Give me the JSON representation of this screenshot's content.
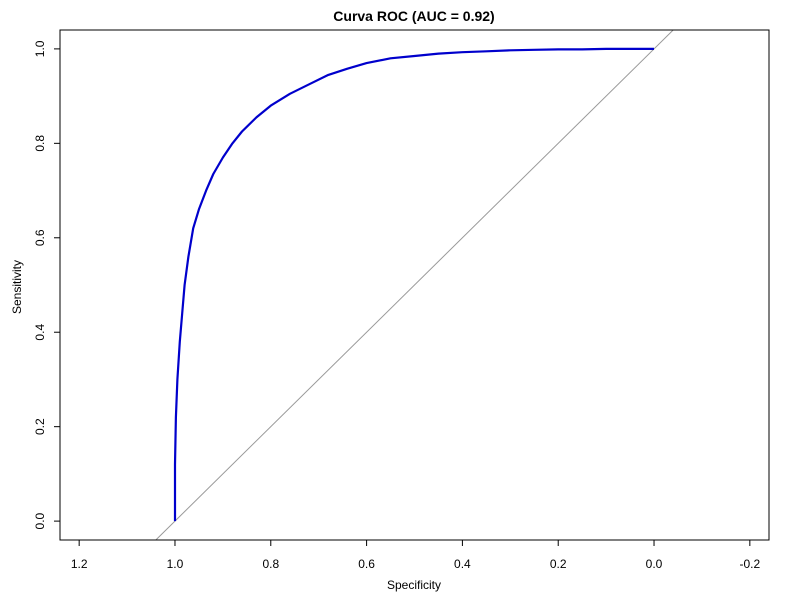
{
  "chart_data": {
    "type": "line",
    "title": "Curva ROC (AUC = 0.92)",
    "xlabel": "Specificity",
    "ylabel": "Sensitivity",
    "x_axis_reversed": true,
    "xlim": [
      1.24,
      -0.24
    ],
    "ylim": [
      -0.04,
      1.04
    ],
    "x_ticks": [
      1.2,
      1.0,
      0.8,
      0.6,
      0.4,
      0.2,
      0.0,
      -0.2
    ],
    "x_tick_labels": [
      "1.2",
      "1.0",
      "0.8",
      "0.6",
      "0.4",
      "0.2",
      "0.0",
      "-0.2"
    ],
    "y_ticks": [
      0.0,
      0.2,
      0.4,
      0.6,
      0.8,
      1.0
    ],
    "y_tick_labels": [
      "0.0",
      "0.2",
      "0.4",
      "0.6",
      "0.8",
      "1.0"
    ],
    "grid": false,
    "series": [
      {
        "color": "#0000cc",
        "x": [
          1.0,
          1.0,
          0.998,
          0.995,
          0.99,
          0.985,
          0.98,
          0.972,
          0.962,
          0.95,
          0.935,
          0.92,
          0.9,
          0.88,
          0.86,
          0.83,
          0.8,
          0.76,
          0.72,
          0.68,
          0.64,
          0.6,
          0.55,
          0.5,
          0.45,
          0.4,
          0.35,
          0.3,
          0.25,
          0.2,
          0.15,
          0.1,
          0.05,
          0.0
        ],
        "y": [
          0.0,
          0.12,
          0.22,
          0.3,
          0.38,
          0.44,
          0.5,
          0.56,
          0.62,
          0.66,
          0.7,
          0.735,
          0.77,
          0.8,
          0.825,
          0.855,
          0.88,
          0.905,
          0.925,
          0.945,
          0.958,
          0.97,
          0.98,
          0.985,
          0.99,
          0.993,
          0.995,
          0.997,
          0.998,
          0.999,
          0.999,
          1.0,
          1.0,
          1.0
        ]
      }
    ],
    "reference_line": {
      "color": "#999999",
      "x": [
        1.04,
        -0.04
      ],
      "y": [
        -0.04,
        1.04
      ]
    }
  }
}
